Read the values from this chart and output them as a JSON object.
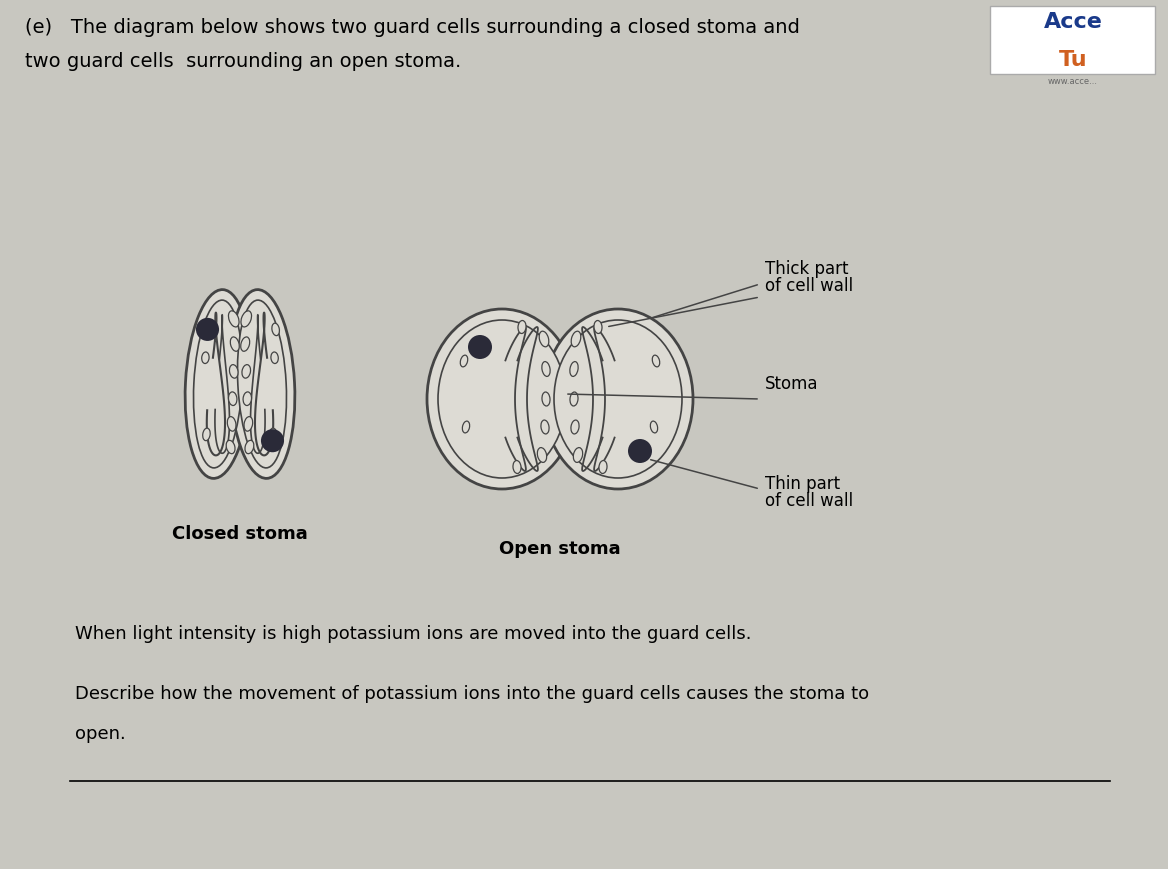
{
  "bg_color": "#c8c7c0",
  "title_line1": "(e)   The diagram below shows two guard cells surrounding a closed stoma and",
  "title_line2": "two guard cells  surrounding an open stoma.",
  "label_closed": "Closed stoma",
  "label_open": "Open stoma",
  "label_thick": "Thick part\nof cell wall",
  "label_stoma": "Stoma",
  "label_thin": "Thin part\nof cell wall",
  "text_when": "When light intensity is high potassium ions are moved into the guard cells.",
  "text_describe": "Describe how the movement of potassium ions into the guard cells causes the stoma to",
  "text_open": "open.",
  "line_color": "#444444",
  "fill_color": "#dddbd4",
  "nucleus_color": "#2a2a38",
  "font_size_title": 14,
  "font_size_labels": 13,
  "font_size_annotations": 12,
  "font_size_body": 13
}
